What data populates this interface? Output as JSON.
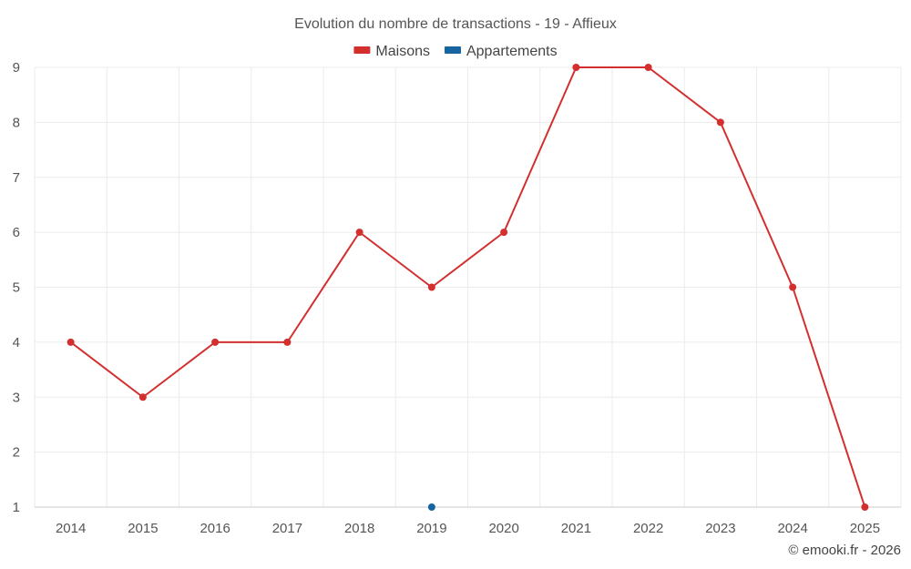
{
  "chart_data": {
    "type": "line",
    "title": "Evolution du nombre de transactions - 19 - Affieux",
    "x": [
      "2014",
      "2015",
      "2016",
      "2017",
      "2018",
      "2019",
      "2020",
      "2021",
      "2022",
      "2023",
      "2024",
      "2025"
    ],
    "series": [
      {
        "name": "Maisons",
        "color": "#d32f2f",
        "values": [
          4,
          3,
          4,
          4,
          6,
          5,
          6,
          9,
          9,
          8,
          5,
          1
        ]
      },
      {
        "name": "Appartements",
        "color": "#1565a0",
        "values": [
          null,
          null,
          null,
          null,
          null,
          1,
          null,
          null,
          null,
          null,
          null,
          null
        ]
      }
    ],
    "ylim": [
      1,
      9
    ],
    "yticks": [
      1,
      2,
      3,
      4,
      5,
      6,
      7,
      8,
      9
    ],
    "grid": true,
    "legend_position": "top-center"
  },
  "footer": {
    "credit": "© emooki.fr - 2026"
  }
}
